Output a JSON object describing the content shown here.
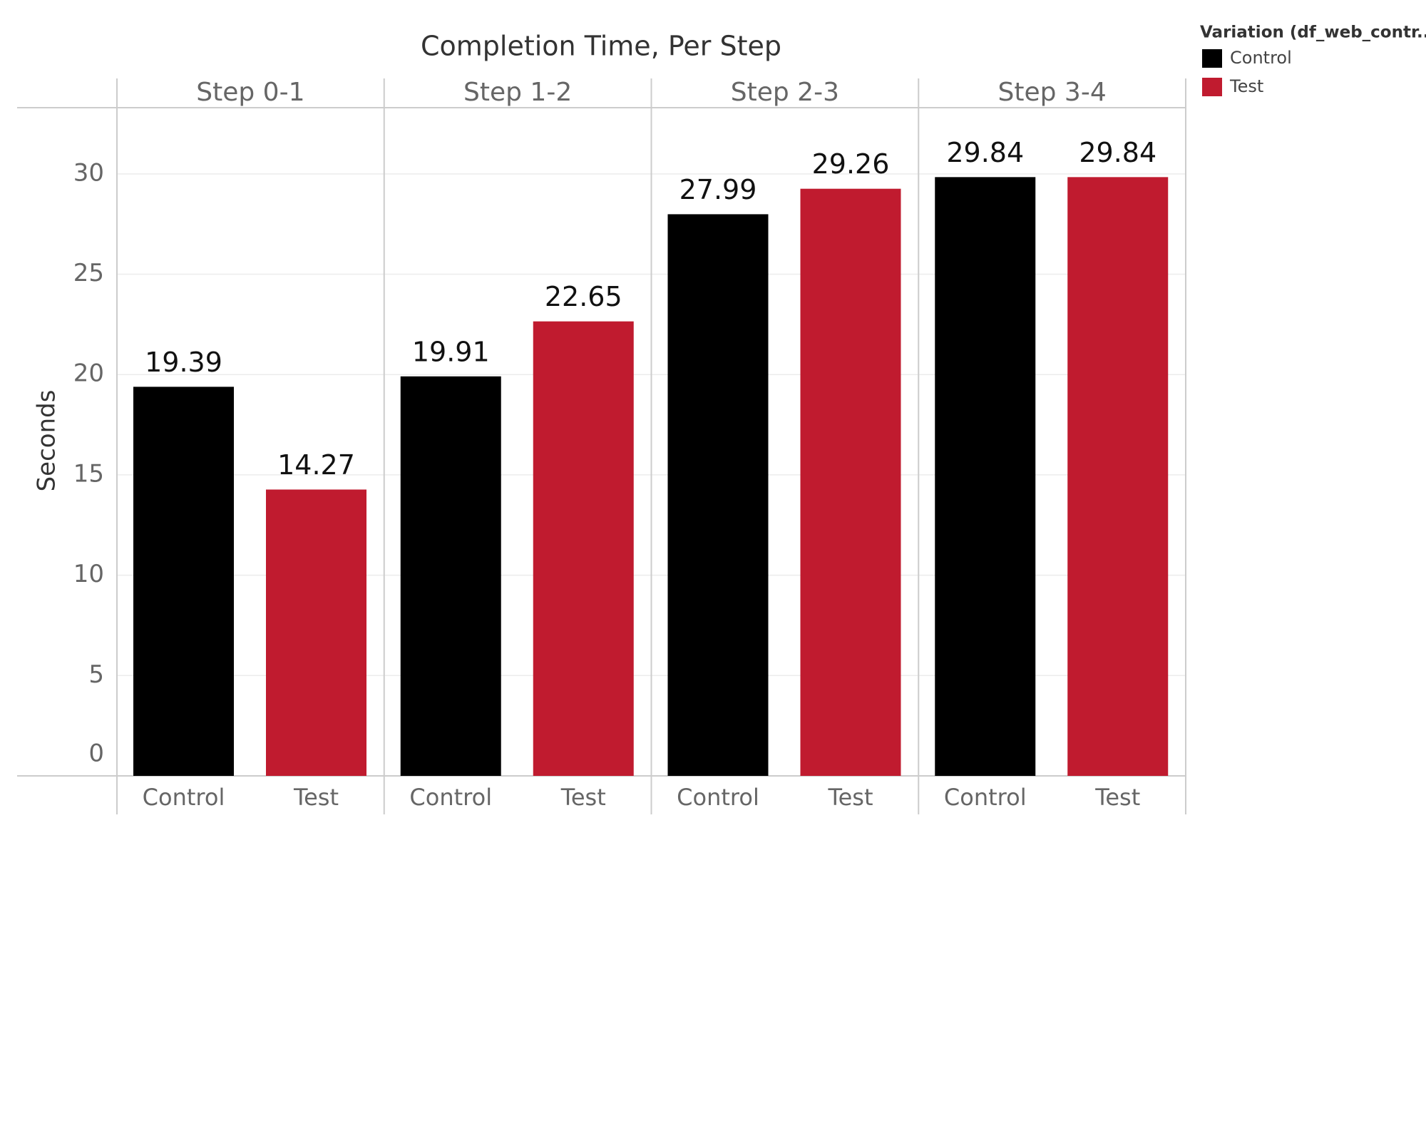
{
  "chart_data": {
    "type": "bar",
    "title": "Completion Time, Per Step",
    "y_label": "Seconds",
    "categories": [
      "Step 0-1",
      "Step 1-2",
      "Step 2-3",
      "Step 3-4"
    ],
    "series": [
      {
        "name": "Control",
        "color": "#000000",
        "values": [
          19.39,
          19.91,
          27.99,
          29.84
        ]
      },
      {
        "name": "Test",
        "color": "#c01b2f",
        "values": [
          14.27,
          22.65,
          29.26,
          29.84
        ]
      }
    ],
    "legend_title": "Variation (df_web_contr..",
    "legend": "top-right",
    "ylim": [
      0,
      33.3
    ],
    "yticks": [
      0,
      5,
      10,
      15,
      20,
      25,
      30
    ],
    "grid": true
  }
}
